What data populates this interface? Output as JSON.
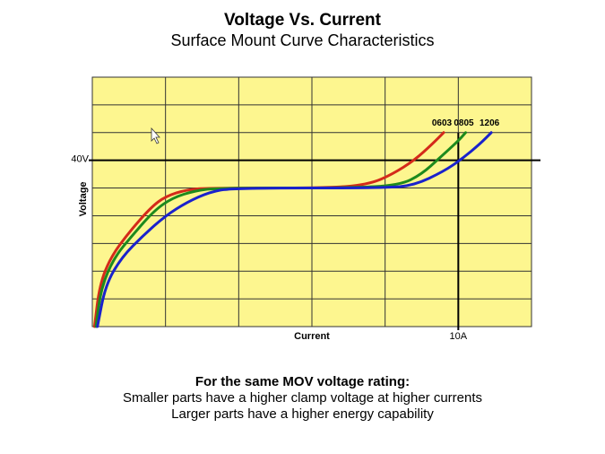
{
  "title": "Voltage Vs. Current",
  "subtitle": "Surface Mount Curve Characteristics",
  "chart_data": {
    "type": "line",
    "xlabel": "Current",
    "ylabel": "Voltage",
    "xlim": [
      0,
      6
    ],
    "ylim": [
      0,
      9
    ],
    "x_grid_divisions": 6,
    "y_grid_divisions": 9,
    "grid": true,
    "background": "#fdf68f",
    "reference_lines": {
      "x": {
        "value": 5,
        "label": "10A"
      },
      "y": {
        "value": 6,
        "label": "40V"
      }
    },
    "series": [
      {
        "name": "0603",
        "color": "#d42a1a",
        "points": [
          [
            0.03,
            0
          ],
          [
            0.1,
            1.5
          ],
          [
            0.25,
            2.5
          ],
          [
            0.5,
            3.4
          ],
          [
            0.8,
            4.3
          ],
          [
            1.0,
            4.7
          ],
          [
            1.3,
            4.95
          ],
          [
            1.6,
            5
          ],
          [
            3.3,
            5
          ],
          [
            3.8,
            5.15
          ],
          [
            4.1,
            5.5
          ],
          [
            4.4,
            6
          ],
          [
            4.65,
            6.6
          ],
          [
            4.8,
            7
          ]
        ]
      },
      {
        "name": "0805",
        "color": "#1d8a1d",
        "points": [
          [
            0.05,
            0
          ],
          [
            0.12,
            1.4
          ],
          [
            0.3,
            2.5
          ],
          [
            0.55,
            3.3
          ],
          [
            0.85,
            4.2
          ],
          [
            1.1,
            4.65
          ],
          [
            1.4,
            4.9
          ],
          [
            1.7,
            5
          ],
          [
            3.5,
            5
          ],
          [
            4.2,
            5.1
          ],
          [
            4.5,
            5.5
          ],
          [
            4.75,
            6.1
          ],
          [
            5.0,
            6.7
          ],
          [
            5.1,
            7
          ]
        ]
      },
      {
        "name": "1206",
        "color": "#1a22cc",
        "points": [
          [
            0.07,
            0
          ],
          [
            0.18,
            1.5
          ],
          [
            0.4,
            2.5
          ],
          [
            0.7,
            3.3
          ],
          [
            1.0,
            4.0
          ],
          [
            1.3,
            4.5
          ],
          [
            1.6,
            4.85
          ],
          [
            1.9,
            5
          ],
          [
            4.0,
            5
          ],
          [
            4.4,
            5.1
          ],
          [
            4.8,
            5.6
          ],
          [
            5.05,
            6.05
          ],
          [
            5.3,
            6.6
          ],
          [
            5.45,
            7
          ]
        ]
      }
    ]
  },
  "notes": {
    "heading": "For the same MOV voltage rating:",
    "line1": "Smaller parts have a higher clamp voltage at higher currents",
    "line2": "Larger parts have a higher energy capability"
  }
}
